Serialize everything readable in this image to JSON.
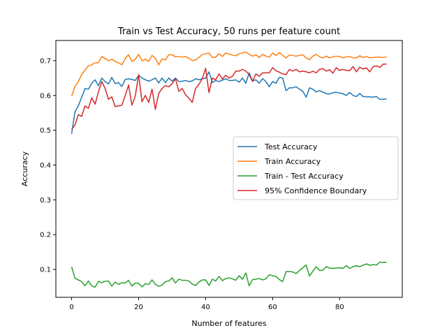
{
  "chart_data": {
    "type": "line",
    "title": "Train vs Test Accuracy, 50 runs per feature count",
    "xlabel": "Number of features",
    "ylabel": "Accuracy",
    "xlim": [
      -4.7,
      98.7
    ],
    "ylim": [
      0.02,
      0.758
    ],
    "xticks": [
      0,
      20,
      40,
      60,
      80
    ],
    "yticks": [
      0.1,
      0.2,
      0.3,
      0.4,
      0.5,
      0.6,
      0.7
    ],
    "legend_position": "center-right",
    "x": [
      0,
      1,
      2,
      3,
      4,
      5,
      6,
      7,
      8,
      9,
      10,
      11,
      12,
      13,
      14,
      15,
      16,
      17,
      18,
      19,
      20,
      21,
      22,
      23,
      24,
      25,
      26,
      27,
      28,
      29,
      30,
      31,
      32,
      33,
      34,
      35,
      36,
      37,
      38,
      39,
      40,
      41,
      42,
      43,
      44,
      45,
      46,
      47,
      48,
      49,
      50,
      51,
      52,
      53,
      54,
      55,
      56,
      57,
      58,
      59,
      60,
      61,
      62,
      63,
      64,
      65,
      66,
      67,
      68,
      69,
      70,
      71,
      72,
      73,
      74,
      75,
      76,
      77,
      78,
      79,
      80,
      81,
      82,
      83,
      84,
      85,
      86,
      87,
      88,
      89,
      90,
      91,
      92,
      93,
      94
    ],
    "series": [
      {
        "name": "Test Accuracy",
        "color": "#1f77b4",
        "values": [
          0.49,
          0.553,
          0.57,
          0.595,
          0.62,
          0.618,
          0.635,
          0.645,
          0.628,
          0.65,
          0.64,
          0.633,
          0.652,
          0.634,
          0.637,
          0.626,
          0.646,
          0.648,
          0.646,
          0.643,
          0.658,
          0.65,
          0.645,
          0.641,
          0.645,
          0.65,
          0.636,
          0.65,
          0.637,
          0.65,
          0.641,
          0.65,
          0.64,
          0.641,
          0.643,
          0.64,
          0.642,
          0.648,
          0.645,
          0.648,
          0.65,
          0.668,
          0.637,
          0.643,
          0.64,
          0.644,
          0.648,
          0.643,
          0.643,
          0.645,
          0.638,
          0.65,
          0.635,
          0.665,
          0.642,
          0.645,
          0.635,
          0.648,
          0.64,
          0.625,
          0.64,
          0.635,
          0.652,
          0.65,
          0.614,
          0.622,
          0.622,
          0.625,
          0.618,
          0.612,
          0.595,
          0.622,
          0.618,
          0.61,
          0.614,
          0.61,
          0.605,
          0.604,
          0.608,
          0.609,
          0.607,
          0.605,
          0.6,
          0.609,
          0.6,
          0.597,
          0.606,
          0.597,
          0.596,
          0.596,
          0.595,
          0.597,
          0.589,
          0.589,
          0.59
        ]
      },
      {
        "name": "Train Accuracy",
        "color": "#ff7f0e",
        "values": [
          0.598,
          0.626,
          0.64,
          0.66,
          0.673,
          0.685,
          0.688,
          0.694,
          0.694,
          0.712,
          0.706,
          0.7,
          0.704,
          0.698,
          0.694,
          0.688,
          0.707,
          0.717,
          0.698,
          0.704,
          0.718,
          0.7,
          0.704,
          0.698,
          0.715,
          0.707,
          0.688,
          0.705,
          0.702,
          0.717,
          0.717,
          0.711,
          0.712,
          0.71,
          0.712,
          0.707,
          0.7,
          0.702,
          0.709,
          0.718,
          0.72,
          0.722,
          0.709,
          0.71,
          0.72,
          0.712,
          0.722,
          0.719,
          0.716,
          0.714,
          0.72,
          0.722,
          0.725,
          0.718,
          0.713,
          0.717,
          0.709,
          0.718,
          0.713,
          0.71,
          0.722,
          0.715,
          0.723,
          0.715,
          0.708,
          0.716,
          0.715,
          0.713,
          0.715,
          0.717,
          0.708,
          0.703,
          0.713,
          0.718,
          0.711,
          0.708,
          0.713,
          0.708,
          0.711,
          0.713,
          0.712,
          0.708,
          0.711,
          0.712,
          0.708,
          0.708,
          0.714,
          0.709,
          0.712,
          0.708,
          0.709,
          0.71,
          0.71,
          0.709,
          0.711
        ]
      },
      {
        "name": "Train - Test Accuracy",
        "color": "#2ca02c",
        "values": [
          0.108,
          0.075,
          0.07,
          0.065,
          0.053,
          0.067,
          0.053,
          0.049,
          0.066,
          0.062,
          0.066,
          0.067,
          0.052,
          0.064,
          0.057,
          0.062,
          0.061,
          0.069,
          0.052,
          0.061,
          0.06,
          0.05,
          0.059,
          0.057,
          0.07,
          0.057,
          0.052,
          0.055,
          0.065,
          0.067,
          0.076,
          0.061,
          0.072,
          0.069,
          0.069,
          0.067,
          0.058,
          0.054,
          0.064,
          0.07,
          0.07,
          0.054,
          0.072,
          0.067,
          0.08,
          0.068,
          0.074,
          0.076,
          0.073,
          0.069,
          0.082,
          0.072,
          0.09,
          0.053,
          0.071,
          0.072,
          0.074,
          0.07,
          0.073,
          0.085,
          0.082,
          0.08,
          0.071,
          0.065,
          0.094,
          0.094,
          0.093,
          0.088,
          0.097,
          0.105,
          0.113,
          0.081,
          0.095,
          0.108,
          0.097,
          0.098,
          0.108,
          0.104,
          0.103,
          0.104,
          0.105,
          0.103,
          0.111,
          0.103,
          0.108,
          0.111,
          0.108,
          0.112,
          0.116,
          0.112,
          0.114,
          0.113,
          0.121,
          0.12,
          0.121
        ]
      },
      {
        "name": "95% Confidence Boundary",
        "color": "#d62728",
        "values": [
          0.503,
          0.515,
          0.545,
          0.54,
          0.57,
          0.563,
          0.593,
          0.575,
          0.61,
          0.64,
          0.62,
          0.589,
          0.596,
          0.568,
          0.57,
          0.572,
          0.6,
          0.63,
          0.572,
          0.598,
          0.66,
          0.582,
          0.6,
          0.58,
          0.618,
          0.56,
          0.606,
          0.62,
          0.628,
          0.625,
          0.634,
          0.648,
          0.612,
          0.62,
          0.602,
          0.592,
          0.58,
          0.62,
          0.632,
          0.648,
          0.678,
          0.608,
          0.65,
          0.645,
          0.662,
          0.647,
          0.658,
          0.65,
          0.655,
          0.67,
          0.67,
          0.675,
          0.67,
          0.66,
          0.64,
          0.662,
          0.655,
          0.665,
          0.665,
          0.665,
          0.68,
          0.671,
          0.667,
          0.662,
          0.66,
          0.675,
          0.67,
          0.675,
          0.668,
          0.67,
          0.668,
          0.665,
          0.67,
          0.665,
          0.675,
          0.677,
          0.67,
          0.674,
          0.664,
          0.68,
          0.672,
          0.675,
          0.672,
          0.671,
          0.683,
          0.668,
          0.681,
          0.676,
          0.679,
          0.668,
          0.683,
          0.685,
          0.681,
          0.69,
          0.69
        ]
      }
    ]
  }
}
